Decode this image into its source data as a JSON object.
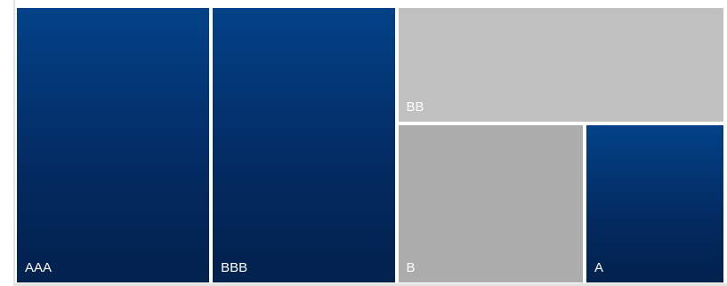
{
  "chart_data": {
    "type": "treemap",
    "title": "",
    "items": [
      {
        "label": "AAA",
        "value": 27.5,
        "color": "#034288"
      },
      {
        "label": "BBB",
        "value": 26.0,
        "color": "#034288"
      },
      {
        "label": "BB",
        "value": 19.5,
        "color": "#c0c0c0"
      },
      {
        "label": "B",
        "value": 15.5,
        "color": "#acacac"
      },
      {
        "label": "A",
        "value": 11.5,
        "color": "#034288"
      }
    ]
  }
}
